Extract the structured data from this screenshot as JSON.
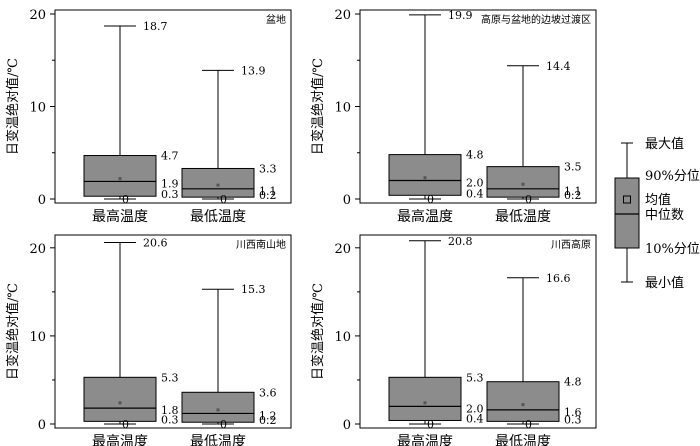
{
  "legend": {
    "labels": {
      "max": "最大值",
      "p90": "90%分位",
      "mean": "均值",
      "median": "中位数",
      "p10": "10%分位",
      "min": "最小值"
    }
  },
  "chart_data": [
    {
      "type": "box",
      "title": "盆地",
      "ylabel": "日变温绝对值/℃",
      "ylim": [
        0,
        20
      ],
      "yticks": [
        0,
        10,
        20
      ],
      "categories": [
        "最高温度",
        "最低温度"
      ],
      "boxes": [
        {
          "max": 18.7,
          "p90": 4.7,
          "median": 1.9,
          "p10": 0.3,
          "min": 0,
          "mean": 2.2,
          "labels": {
            "max": "18.7",
            "p90": "4.7",
            "median": "1.9",
            "p10": "0.3",
            "min": "0"
          }
        },
        {
          "max": 13.9,
          "p90": 3.3,
          "median": 1.1,
          "p10": 0.2,
          "min": 0,
          "mean": 1.5,
          "labels": {
            "max": "13.9",
            "p90": "3.3",
            "median": "1.1",
            "p10": "0.2",
            "min": "0"
          }
        }
      ]
    },
    {
      "type": "box",
      "title": "高原与盆地的边坡过渡区",
      "ylabel": "日变温绝对值/℃",
      "ylim": [
        0,
        20
      ],
      "yticks": [
        0,
        10,
        20
      ],
      "categories": [
        "最高温度",
        "最低温度"
      ],
      "boxes": [
        {
          "max": 19.9,
          "p90": 4.8,
          "median": 2.0,
          "p10": 0.4,
          "min": 0,
          "mean": 2.3,
          "labels": {
            "max": "19.9",
            "p90": "4.8",
            "median": "2.0",
            "p10": "0.4",
            "min": "0"
          }
        },
        {
          "max": 14.4,
          "p90": 3.5,
          "median": 1.1,
          "p10": 0.2,
          "min": 0,
          "mean": 1.6,
          "labels": {
            "max": "14.4",
            "p90": "3.5",
            "median": "1.1",
            "p10": "0.2",
            "min": "0"
          }
        }
      ]
    },
    {
      "type": "box",
      "title": "川西南山地",
      "ylabel": "日变温绝对值/℃",
      "ylim": [
        0,
        21
      ],
      "yticks": [
        0,
        10,
        20
      ],
      "categories": [
        "最高温度",
        "最低温度"
      ],
      "boxes": [
        {
          "max": 20.6,
          "p90": 5.3,
          "median": 1.8,
          "p10": 0.3,
          "min": 0,
          "mean": 2.4,
          "labels": {
            "max": "20.6",
            "p90": "5.3",
            "median": "1.8",
            "p10": "0.3",
            "min": "0"
          }
        },
        {
          "max": 15.3,
          "p90": 3.6,
          "median": 1.2,
          "p10": 0.2,
          "min": 0,
          "mean": 1.6,
          "labels": {
            "max": "15.3",
            "p90": "3.6",
            "median": "1.2",
            "p10": "0.2",
            "min": "0"
          }
        }
      ]
    },
    {
      "type": "box",
      "title": "川西高原",
      "ylabel": "日变温绝对值/℃",
      "ylim": [
        0,
        21
      ],
      "yticks": [
        0,
        10,
        20
      ],
      "categories": [
        "最高温度",
        "最低温度"
      ],
      "boxes": [
        {
          "max": 20.8,
          "p90": 5.3,
          "median": 2.0,
          "p10": 0.4,
          "min": 0,
          "mean": 2.4,
          "labels": {
            "max": "20.8",
            "p90": "5.3",
            "median": "2.0",
            "p10": "0.4",
            "min": "0"
          }
        },
        {
          "max": 16.6,
          "p90": 4.8,
          "median": 1.6,
          "p10": 0.3,
          "min": 0,
          "mean": 2.2,
          "labels": {
            "max": "16.6",
            "p90": "4.8",
            "median": "1.6",
            "p10": "0.3",
            "min": "0"
          }
        }
      ]
    }
  ]
}
